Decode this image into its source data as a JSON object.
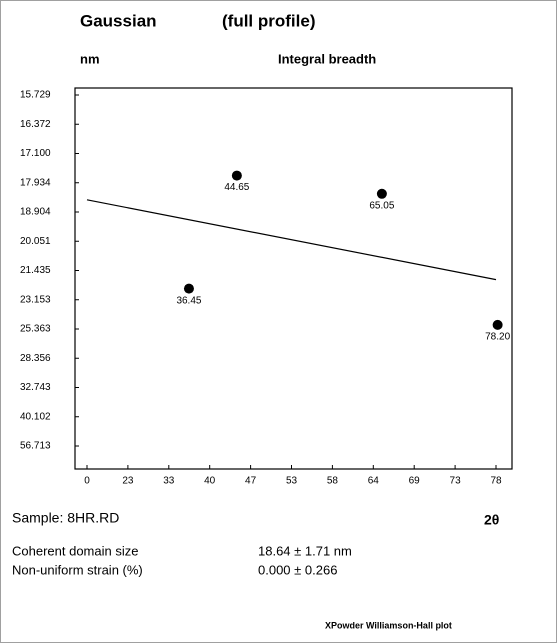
{
  "chart_data": {
    "type": "scatter",
    "title": "Gaussian",
    "subtitle": "(full profile)",
    "y_label": "nm",
    "y_label_right": "Integral breadth",
    "x_label": "2θ",
    "sample": "Sample: 8HR.RD",
    "results": [
      [
        "Coherent domain size",
        "18.64 ± 1.71 nm"
      ],
      [
        "Non-uniform strain (%)",
        "0.000 ± 0.266"
      ]
    ],
    "footer": "XPowder Williamson-Hall plot",
    "xticks": [
      0,
      23,
      33,
      40,
      47,
      53,
      58,
      64,
      69,
      73,
      78
    ],
    "yticks": [
      {
        "value": 15.729,
        "label": "15.729"
      },
      16.372,
      {
        "value": 17.1,
        "label": "17.100"
      },
      17.934,
      18.904,
      20.051,
      21.435,
      23.153,
      25.363,
      28.356,
      32.743,
      40.102,
      56.713
    ],
    "series": [
      {
        "name": "points",
        "color": "#000000",
        "x": [
          36.45,
          44.65,
          65.05,
          78.2
        ],
        "values": [
          22.5,
          17.73,
          18.3,
          25.05
        ],
        "x_labels": [
          "36.45",
          "44.65",
          "65.05",
          "78.20"
        ]
      },
      {
        "name": "fit",
        "color": "#000000",
        "x": [
          0,
          78
        ],
        "values": [
          18.5,
          21.97
        ]
      }
    ]
  }
}
